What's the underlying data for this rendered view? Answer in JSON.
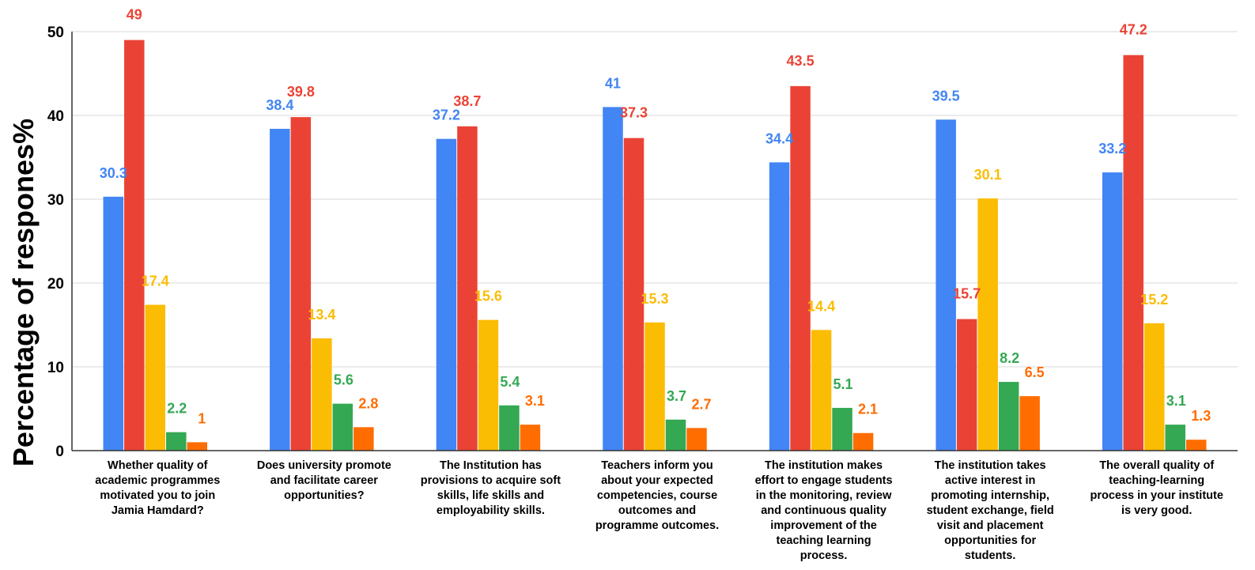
{
  "chart_data": {
    "type": "bar",
    "title": "",
    "xlabel": "",
    "ylabel": "Percentage of respones%",
    "ylim": [
      0,
      50
    ],
    "yticks": [
      0,
      10,
      20,
      30,
      40,
      50
    ],
    "grid": true,
    "legend": "none",
    "categories": [
      "Whether quality of academic programmes motivated you to join Jamia Hamdard?",
      "Does university promote and facilitate career opportunities?",
      "The Institution has provisions to acquire soft skills, life skills and employability skills.",
      "Teachers inform you about your expected competencies, course outcomes and programme outcomes.",
      "The institution makes effort to engage students in the monitoring, review and continuous quality improvement of the teaching learning process.",
      "The institution takes active interest in promoting internship, student exchange, field visit and placement opportunities for students.",
      "The overall quality of teaching-learning process in your institute is very good."
    ],
    "category_lines": [
      [
        "Whether quality of",
        "academic programmes",
        "motivated you to join",
        "Jamia Hamdard?"
      ],
      [
        "Does university promote",
        "and facilitate career",
        "opportunities?"
      ],
      [
        "The Institution has",
        "provisions to acquire soft",
        "skills, life skills and",
        "employability skills."
      ],
      [
        "Teachers inform you",
        "about your expected",
        "competencies, course",
        "outcomes and",
        "programme outcomes."
      ],
      [
        "The institution makes",
        "effort to engage students",
        "in the monitoring, review",
        "and continuous quality",
        "improvement of the",
        "teaching learning",
        "process."
      ],
      [
        "The institution takes",
        "active interest in",
        "promoting internship,",
        "student exchange, field",
        "visit and placement",
        "opportunities for",
        "students."
      ],
      [
        "The overall quality of",
        "teaching-learning",
        "process in your institute",
        "is very good."
      ]
    ],
    "series": [
      {
        "values": [
          30.3,
          38.4,
          37.2,
          41,
          34.4,
          39.5,
          33.2
        ],
        "labels": [
          "30.3",
          "38.4",
          "37.2",
          "41",
          "34.4",
          "39.5",
          "33.2"
        ],
        "color": "#4285f4"
      },
      {
        "values": [
          49,
          39.8,
          38.7,
          37.3,
          43.5,
          15.7,
          47.2
        ],
        "labels": [
          "49",
          "39.8",
          "38.7",
          "37.3",
          "43.5",
          "15.7",
          "47.2"
        ],
        "color": "#ea4335"
      },
      {
        "values": [
          17.4,
          13.4,
          15.6,
          15.3,
          14.4,
          30.1,
          15.2
        ],
        "labels": [
          "17.4",
          "13.4",
          "15.6",
          "15.3",
          "14.4",
          "30.1",
          "15.2"
        ],
        "color": "#fbbc04"
      },
      {
        "values": [
          2.2,
          5.6,
          5.4,
          3.7,
          5.1,
          8.2,
          3.1
        ],
        "labels": [
          "2.2",
          "5.6",
          "5.4",
          "3.7",
          "5.1",
          "8.2",
          "3.1"
        ],
        "color": "#34a853"
      },
      {
        "values": [
          1,
          2.8,
          3.1,
          2.7,
          2.1,
          6.5,
          1.3
        ],
        "labels": [
          "1",
          "2.8",
          "3.1",
          "2.7",
          "2.1",
          "6.5",
          "1.3"
        ],
        "color": "#ff6d01"
      }
    ]
  }
}
